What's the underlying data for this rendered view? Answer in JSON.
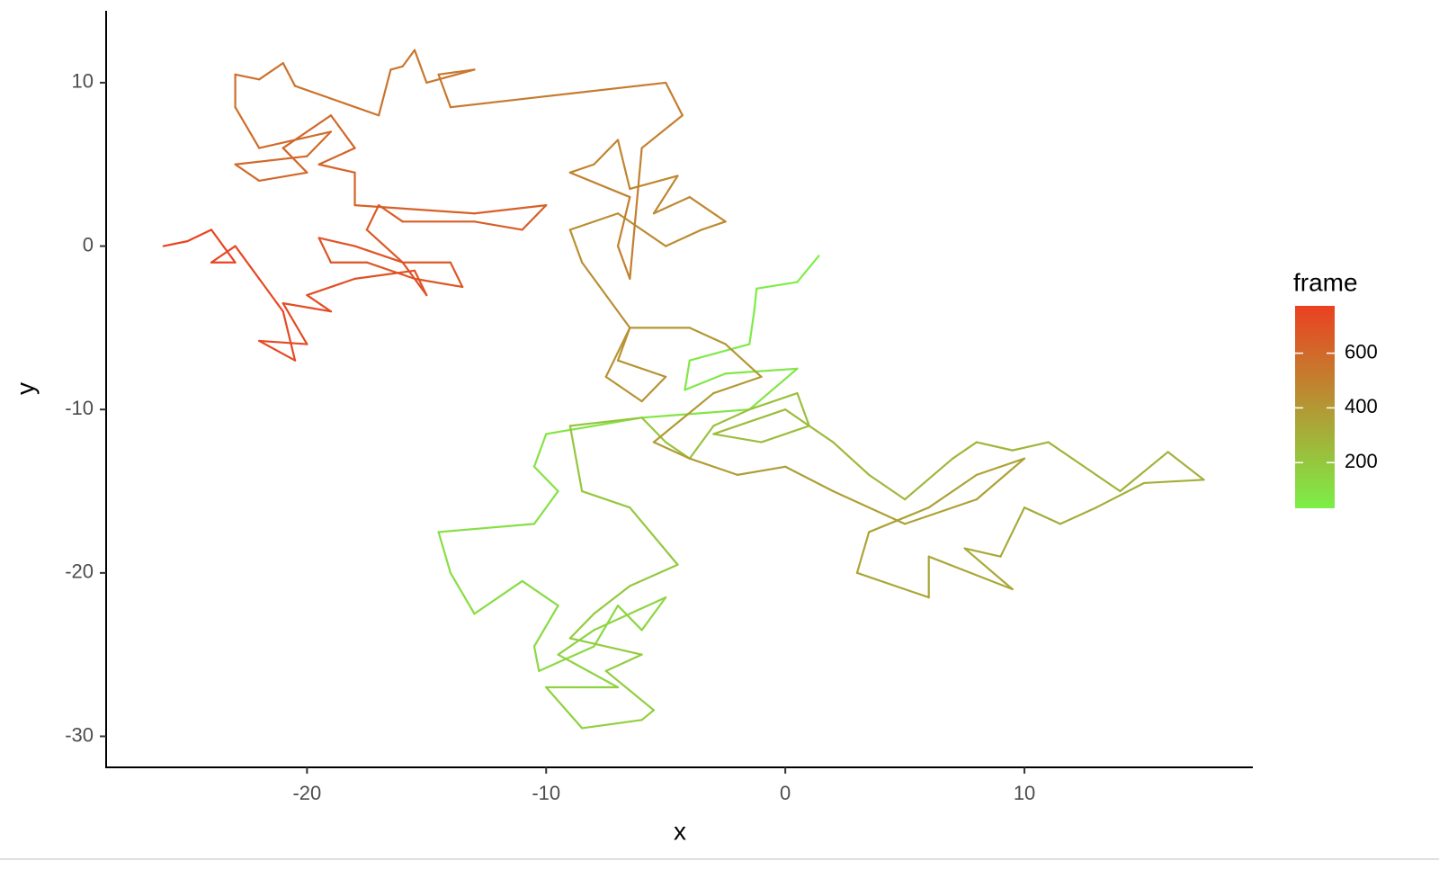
{
  "chart_data": {
    "type": "line",
    "x_label": "x",
    "y_label": "y",
    "x": [
      1.4,
      0.5,
      -1.2,
      -1.3,
      -1.5,
      -4,
      -4.2,
      -2.5,
      0.5,
      -1.5,
      -6,
      -10,
      -10.5,
      -9.5,
      -10.5,
      -14.5,
      -14,
      -13,
      -11,
      -9.5,
      -10.5,
      -10.3,
      -8,
      -7,
      -6,
      -5,
      -8,
      -9.5,
      -7,
      -10,
      -8.5,
      -6,
      -5.5,
      -7.5,
      -6,
      -9,
      -8,
      -6.5,
      -4.5,
      -6.5,
      -8.5,
      -9,
      -6,
      -5,
      -4,
      -3,
      -1.5,
      0.5,
      1,
      -1,
      -3,
      0,
      2,
      3.5,
      5,
      7,
      8,
      9.5,
      11,
      13,
      14,
      16,
      17.5,
      15,
      13,
      11.5,
      10,
      9,
      7.5,
      9.5,
      6,
      6,
      3,
      3.5,
      6,
      8,
      10,
      8,
      5,
      2,
      0,
      -2,
      -4,
      -5.5,
      -3,
      -1,
      -2.5,
      -4,
      -6.5,
      -7.5,
      -6,
      -5,
      -7,
      -6.5,
      -8.5,
      -9,
      -7,
      -6,
      -5,
      -3.5,
      -2.5,
      -4,
      -5.5,
      -4.5,
      -6.5,
      -7,
      -8,
      -9,
      -6.5,
      -7,
      -6.5,
      -6,
      -4.3,
      -5,
      -11,
      -14,
      -14.5,
      -13,
      -15,
      -15.5,
      -16,
      -16.5,
      -17,
      -20.5,
      -21,
      -22,
      -23,
      -23,
      -22,
      -19,
      -20,
      -23,
      -22,
      -20,
      -21,
      -19,
      -18,
      -19.5,
      -18,
      -18,
      -13,
      -10,
      -11,
      -13,
      -16,
      -17,
      -17.5,
      -16,
      -14,
      -13.5,
      -15.5,
      -17.5,
      -19,
      -19.5,
      -18,
      -16,
      -15,
      -15.5,
      -18,
      -20,
      -19,
      -21,
      -20,
      -22,
      -20.5,
      -21,
      -22,
      -23,
      -24,
      -23,
      -24,
      -25,
      -26
    ],
    "values": [
      -0.6,
      -2.2,
      -2.6,
      -4,
      -6,
      -7,
      -8.8,
      -7.8,
      -7.5,
      -10,
      -10.5,
      -11.5,
      -13.5,
      -15,
      -17,
      -17.5,
      -20,
      -22.5,
      -20.5,
      -22,
      -24.5,
      -26,
      -24.5,
      -22,
      -23.5,
      -21.5,
      -23.5,
      -25,
      -27,
      -27,
      -29.5,
      -29,
      -28.4,
      -26,
      -25,
      -24,
      -22.5,
      -20.8,
      -19.5,
      -16,
      -15,
      -11,
      -10.5,
      -12,
      -13,
      -11,
      -10,
      -9,
      -11,
      -12,
      -11.5,
      -10,
      -12,
      -14,
      -15.5,
      -13,
      -12,
      -12.5,
      -12,
      -14,
      -15,
      -12.6,
      -14.3,
      -14.5,
      -16,
      -17,
      -16,
      -19,
      -18.5,
      -21,
      -19,
      -21.5,
      -20,
      -17.5,
      -16,
      -14,
      -13,
      -15.5,
      -17,
      -15,
      -13.5,
      -14,
      -13,
      -12,
      -9,
      -8,
      -6,
      -5,
      -5,
      -8,
      -9.5,
      -8,
      -7,
      -5,
      -1,
      1,
      2,
      1,
      0,
      1,
      1.5,
      3,
      2,
      4.3,
      3.5,
      6.5,
      5,
      4.5,
      3,
      0,
      -2,
      6,
      8,
      10,
      9,
      8.5,
      10.5,
      10.8,
      10,
      12,
      11,
      10.8,
      8,
      9.8,
      11.2,
      10.2,
      10.5,
      8.5,
      6,
      7,
      5.5,
      5,
      4,
      4.5,
      6,
      8,
      6,
      5,
      4.5,
      2.5,
      2,
      2.5,
      1,
      1.5,
      1.5,
      2.5,
      1,
      -1,
      -1,
      -2.5,
      -2,
      -1,
      -1,
      0.5,
      0,
      -1,
      -3,
      -1.5,
      -2,
      -3,
      -4,
      -3.5,
      -6,
      -5.8,
      -7,
      -4,
      -2,
      0,
      -1,
      -1,
      1,
      0.3,
      0
    ],
    "frame": [
      33,
      37,
      42,
      46,
      50,
      55,
      59,
      63,
      67,
      72,
      76,
      80,
      85,
      89,
      93,
      98,
      102,
      106,
      110,
      115,
      119,
      123,
      128,
      132,
      136,
      141,
      145,
      149,
      153,
      158,
      162,
      166,
      171,
      175,
      179,
      184,
      188,
      192,
      196,
      201,
      205,
      209,
      214,
      218,
      222,
      227,
      231,
      235,
      239,
      244,
      248,
      252,
      257,
      261,
      265,
      270,
      274,
      278,
      282,
      287,
      291,
      295,
      300,
      304,
      308,
      313,
      317,
      321,
      325,
      330,
      334,
      338,
      343,
      347,
      351,
      356,
      360,
      364,
      368,
      373,
      377,
      381,
      386,
      390,
      394,
      399,
      403,
      407,
      411,
      416,
      420,
      424,
      429,
      433,
      437,
      442,
      446,
      450,
      454,
      459,
      463,
      467,
      472,
      476,
      480,
      485,
      489,
      493,
      497,
      502,
      506,
      510,
      515,
      519,
      523,
      528,
      532,
      536,
      540,
      545,
      549,
      553,
      558,
      562,
      566,
      571,
      575,
      579,
      583,
      588,
      592,
      596,
      601,
      605,
      609,
      614,
      618,
      622,
      626,
      631,
      635,
      639,
      644,
      648,
      652,
      657,
      661,
      665,
      669,
      674,
      678,
      682,
      687,
      691,
      695,
      700,
      704,
      708,
      712,
      717,
      721,
      725,
      730,
      734,
      738,
      743,
      747,
      751,
      755,
      760,
      764,
      768,
      773
    ],
    "xlim": [
      -28.4,
      19.55
    ],
    "ylim": [
      -31.9,
      14.4
    ],
    "xticks": [
      -20,
      -10,
      0,
      10
    ],
    "yticks": [
      10,
      0,
      -10,
      -20,
      -30
    ],
    "color_scale": {
      "title": "frame",
      "low_color": "#7cef47",
      "high_color": "#eb4021",
      "limits": [
        33,
        773
      ],
      "ticks": [
        200,
        400,
        600
      ]
    }
  }
}
